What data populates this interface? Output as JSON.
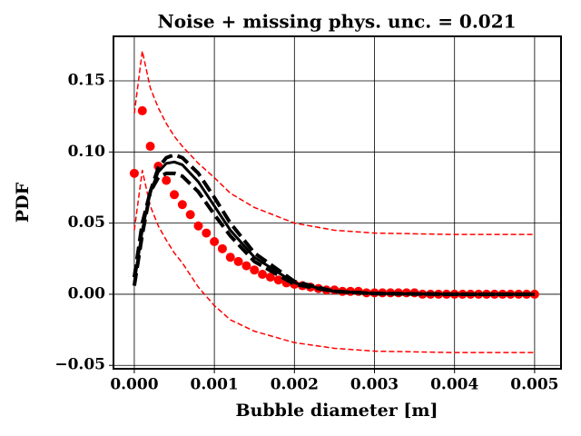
{
  "chart_data": {
    "type": "line",
    "title": "Noise + missing phys. unc. = 0.021",
    "x_label": "Bubble diameter [m]",
    "y_label": "PDF",
    "xlim": [
      -0.00026,
      0.00533
    ],
    "ylim": [
      -0.0524,
      0.1813
    ],
    "xticks": [
      {
        "value": 0,
        "label": "0.000"
      },
      {
        "value": 0.001,
        "label": "0.001"
      },
      {
        "value": 0.002,
        "label": "0.002"
      },
      {
        "value": 0.003,
        "label": "0.003"
      },
      {
        "value": 0.004,
        "label": "0.004"
      },
      {
        "value": 0.005,
        "label": "0.005"
      }
    ],
    "yticks": [
      {
        "value": -0.05,
        "label": "−0.05"
      },
      {
        "value": 0,
        "label": "0.00"
      },
      0.05,
      {
        "value": 0.1,
        "label": "0.10"
      },
      0.15
    ],
    "grid": true,
    "series": [
      {
        "color": "#ff0000",
        "style": "dashed",
        "width": 1.5,
        "x": [
          0,
          0.0001,
          0.0002,
          0.0003,
          0.0004,
          0.0005,
          0.0006,
          0.0008,
          0.001,
          0.0012,
          0.0015,
          0.002,
          0.0025,
          0.003,
          0.004,
          0.005
        ],
        "values": [
          0.127,
          0.171,
          0.145,
          0.131,
          0.12,
          0.111,
          0.104,
          0.092,
          0.082,
          0.071,
          0.061,
          0.05,
          0.045,
          0.043,
          0.042,
          0.042
        ]
      },
      {
        "color": "#ff0000",
        "style": "dashed",
        "width": 1.5,
        "x": [
          0,
          0.0001,
          0.0002,
          0.0003,
          0.0004,
          0.0005,
          0.0006,
          0.0008,
          0.001,
          0.0012,
          0.0015,
          0.002,
          0.0025,
          0.003,
          0.004,
          0.005
        ],
        "values": [
          0.045,
          0.087,
          0.062,
          0.048,
          0.038,
          0.029,
          0.022,
          0.005,
          -0.008,
          -0.018,
          -0.026,
          -0.034,
          -0.038,
          -0.04,
          -0.041,
          -0.041
        ]
      },
      {
        "color": "#ff0000",
        "style": "dots",
        "x": [
          0,
          0.0001,
          0.0002,
          0.0003,
          0.0004,
          0.0005,
          0.0006,
          0.0007,
          0.0008,
          0.0009,
          0.001,
          0.0011,
          0.0012,
          0.0013,
          0.0014,
          0.0015,
          0.0016,
          0.0017,
          0.0018,
          0.0019,
          0.002,
          0.0021,
          0.0022,
          0.0023,
          0.0024,
          0.0025,
          0.0026,
          0.0027,
          0.0028,
          0.0029,
          0.003,
          0.0031,
          0.0032,
          0.0033,
          0.0034,
          0.0035,
          0.0036,
          0.0037,
          0.0038,
          0.0039,
          0.004,
          0.0041,
          0.0042,
          0.0043,
          0.0044,
          0.0045,
          0.0046,
          0.0047,
          0.0048,
          0.0049,
          0.005
        ],
        "values": [
          0.085,
          0.129,
          0.104,
          0.09,
          0.08,
          0.07,
          0.063,
          0.056,
          0.048,
          0.043,
          0.037,
          0.032,
          0.026,
          0.023,
          0.02,
          0.017,
          0.014,
          0.012,
          0.01,
          0.008,
          0.007,
          0.006,
          0.005,
          0.004,
          0.003,
          0.003,
          0.002,
          0.002,
          0.002,
          0.001,
          0.001,
          0.001,
          0.001,
          0.001,
          0.001,
          0.001,
          0,
          0,
          0,
          0,
          0,
          0,
          0,
          0,
          0,
          0,
          0,
          0,
          0,
          0,
          0
        ]
      },
      {
        "color": "#000000",
        "style": "solid",
        "width": 3,
        "x": [
          0,
          0.0001,
          0.0002,
          0.0003,
          0.0004,
          0.0005,
          0.0006,
          0.0008,
          0.001,
          0.0012,
          0.0015,
          0.002,
          0.0025,
          0.003,
          0.004,
          0.005
        ],
        "values": [
          0.008,
          0.045,
          0.072,
          0.086,
          0.092,
          0.093,
          0.091,
          0.079,
          0.062,
          0.045,
          0.026,
          0.008,
          0.002,
          0.0005,
          0,
          0
        ]
      },
      {
        "color": "#000000",
        "style": "dashed",
        "width": 4,
        "x": [
          0,
          0.0001,
          0.0002,
          0.0003,
          0.0004,
          0.0005,
          0.0006,
          0.0008,
          0.001,
          0.0012,
          0.0015,
          0.002,
          0.0025,
          0.003,
          0.004,
          0.005
        ],
        "values": [
          0.006,
          0.042,
          0.072,
          0.089,
          0.096,
          0.098,
          0.096,
          0.085,
          0.068,
          0.05,
          0.029,
          0.009,
          0.002,
          0.0005,
          0,
          0
        ]
      },
      {
        "color": "#000000",
        "style": "dashed",
        "width": 4,
        "x": [
          0,
          0.0001,
          0.0002,
          0.0003,
          0.0004,
          0.0005,
          0.0006,
          0.0008,
          0.001,
          0.0012,
          0.0015,
          0.002,
          0.0025,
          0.003,
          0.004,
          0.005
        ],
        "values": [
          0.012,
          0.05,
          0.072,
          0.082,
          0.085,
          0.085,
          0.083,
          0.072,
          0.056,
          0.041,
          0.023,
          0.007,
          0.002,
          0.0005,
          0,
          0
        ]
      }
    ]
  }
}
